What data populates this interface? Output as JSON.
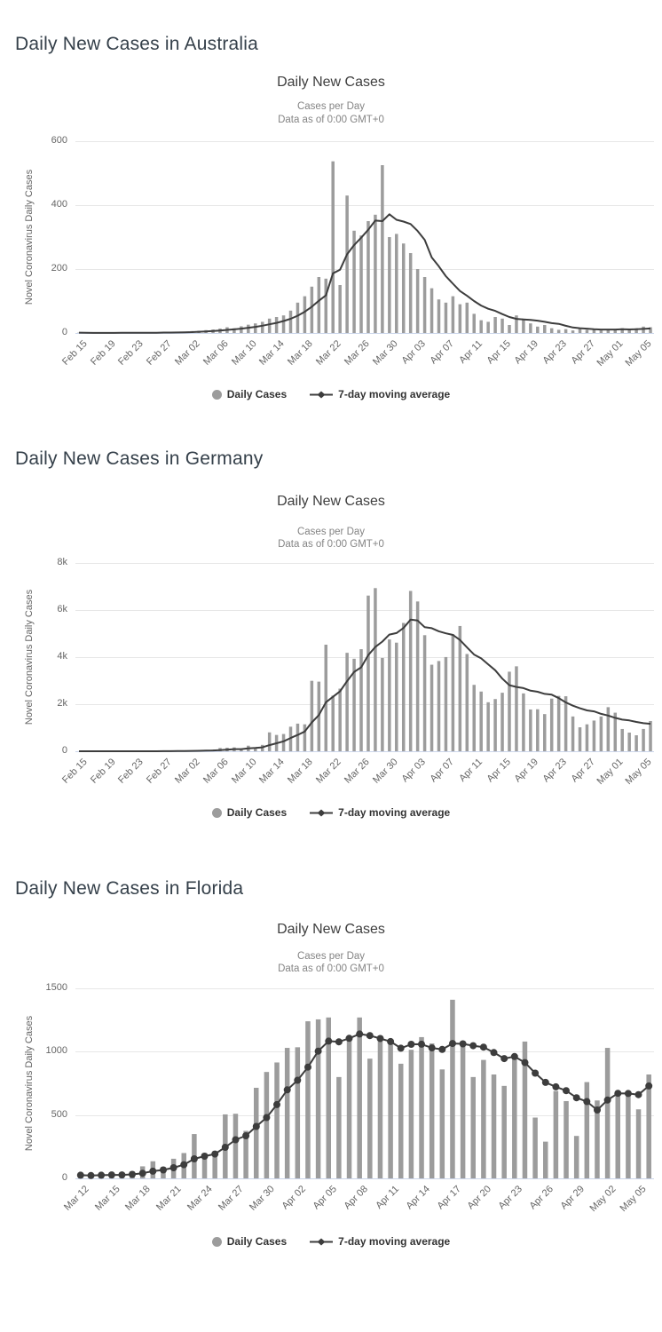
{
  "page": {
    "background": "#ffffff"
  },
  "colors": {
    "bar": "#9c9c9c",
    "ma_line": "#3d3d3d",
    "gridline": "#e7e7e7",
    "axis_line": "#ccd6eb",
    "heading_text": "#35404a",
    "chart_title_text": "#3e3e3e",
    "subtitle_text": "#848484",
    "tick_text": "#666666",
    "legend_text": "#333333"
  },
  "sections": [
    {
      "heading": "Daily New Cases in Australia"
    },
    {
      "heading": "Daily New Cases in Germany"
    },
    {
      "heading": "Daily New Cases in Florida"
    }
  ],
  "chart_common": {
    "title": "Daily New Cases",
    "subtitle1": "Cases per Day",
    "subtitle2": "Data as of 0:00 GMT+0",
    "y_axis_title": "Novel Coronavirus Daily Cases",
    "legend": {
      "daily": "Daily Cases",
      "ma": "7-day moving average"
    }
  },
  "chart_data": [
    {
      "type": "bar",
      "region": "Australia",
      "title": "Daily New Cases",
      "subtitle1": "Cases per Day",
      "subtitle2": "Data as of 0:00 GMT+0",
      "ylabel": "Novel Coronavirus Daily Cases",
      "xlabel": "",
      "grid": true,
      "legend_position": "bottom",
      "series": [
        {
          "name": "Daily Cases",
          "type": "bar"
        },
        {
          "name": "7-day moving average",
          "type": "line",
          "note": "trailing 7-day mean of Daily Cases"
        }
      ],
      "x_tick_labels": [
        "Feb 15",
        "Feb 19",
        "Feb 23",
        "Feb 27",
        "Mar 02",
        "Mar 06",
        "Mar 10",
        "Mar 14",
        "Mar 18",
        "Mar 22",
        "Mar 26",
        "Mar 30",
        "Apr 03",
        "Apr 07",
        "Apr 11",
        "Apr 15",
        "Apr 19",
        "Apr 23",
        "Apr 27",
        "May 01",
        "May 05"
      ],
      "x_tick_step": 4,
      "ylim": [
        0,
        600
      ],
      "y_ticks": [
        {
          "v": 0,
          "label": "0"
        },
        {
          "v": 200,
          "label": "200"
        },
        {
          "v": 400,
          "label": "400"
        },
        {
          "v": 600,
          "label": "600"
        }
      ],
      "line_markers": false,
      "values": [
        1,
        0,
        0,
        0,
        1,
        0,
        2,
        1,
        0,
        2,
        0,
        1,
        3,
        2,
        4,
        4,
        6,
        7,
        9,
        11,
        14,
        18,
        15,
        21,
        26,
        30,
        35,
        45,
        50,
        55,
        70,
        95,
        115,
        145,
        175,
        170,
        537,
        150,
        430,
        320,
        305,
        350,
        370,
        525,
        300,
        310,
        280,
        250,
        200,
        175,
        140,
        105,
        95,
        115,
        90,
        95,
        60,
        40,
        35,
        50,
        45,
        25,
        55,
        45,
        30,
        20,
        25,
        15,
        10,
        12,
        8,
        15,
        10,
        12,
        8,
        10,
        12,
        15,
        10,
        15,
        20,
        18
      ]
    },
    {
      "type": "bar",
      "region": "Germany",
      "title": "Daily New Cases",
      "subtitle1": "Cases per Day",
      "subtitle2": "Data as of 0:00 GMT+0",
      "ylabel": "Novel Coronavirus Daily Cases",
      "xlabel": "",
      "grid": true,
      "legend_position": "bottom",
      "series": [
        {
          "name": "Daily Cases",
          "type": "bar"
        },
        {
          "name": "7-day moving average",
          "type": "line",
          "note": "trailing 7-day mean of Daily Cases"
        }
      ],
      "x_tick_labels": [
        "Feb 15",
        "Feb 19",
        "Feb 23",
        "Feb 27",
        "Mar 02",
        "Mar 06",
        "Mar 10",
        "Mar 14",
        "Mar 18",
        "Mar 22",
        "Mar 26",
        "Mar 30",
        "Apr 03",
        "Apr 07",
        "Apr 11",
        "Apr 15",
        "Apr 19",
        "Apr 23",
        "Apr 27",
        "May 01",
        "May 05"
      ],
      "x_tick_step": 4,
      "ylim": [
        0,
        8000
      ],
      "y_ticks": [
        {
          "v": 0,
          "label": "0"
        },
        {
          "v": 2000,
          "label": "2k"
        },
        {
          "v": 4000,
          "label": "4k"
        },
        {
          "v": 6000,
          "label": "6k"
        },
        {
          "v": 8000,
          "label": "8k"
        }
      ],
      "line_markers": false,
      "values": [
        0,
        0,
        0,
        0,
        0,
        0,
        1,
        0,
        1,
        0,
        2,
        3,
        9,
        13,
        26,
        21,
        37,
        28,
        39,
        66,
        138,
        150,
        163,
        55,
        237,
        157,
        271,
        802,
        693,
        733,
        1043,
        1174,
        1144,
        2993,
        2958,
        4528,
        2365,
        2660,
        4183,
        3930,
        4337,
        6615,
        6933,
        3965,
        4751,
        4615,
        5453,
        6813,
        6365,
        4932,
        3677,
        3834,
        4003,
        4974,
        5323,
        4133,
        2821,
        2537,
        2082,
        2218,
        2486,
        3380,
        3609,
        2458,
        1775,
        1785,
        1579,
        2237,
        2352,
        2337,
        1478,
        1018,
        1144,
        1304,
        1478,
        1872,
        1639,
        945,
        793,
        679,
        947,
        1284
      ]
    },
    {
      "type": "bar",
      "region": "Florida",
      "title": "Daily New Cases",
      "subtitle1": "Cases per Day",
      "subtitle2": "Data as of 0:00 GMT+0",
      "ylabel": "Novel Coronavirus Daily Cases",
      "xlabel": "",
      "grid": true,
      "legend_position": "bottom",
      "series": [
        {
          "name": "Daily Cases",
          "type": "bar"
        },
        {
          "name": "7-day moving average",
          "type": "line",
          "note": "trailing 7-day mean of Daily Cases"
        }
      ],
      "x_tick_labels": [
        "Mar 12",
        "Mar 15",
        "Mar 18",
        "Mar 21",
        "Mar 24",
        "Mar 27",
        "Mar 30",
        "Apr 02",
        "Apr 05",
        "Apr 08",
        "Apr 11",
        "Apr 14",
        "Apr 17",
        "Apr 20",
        "Apr 23",
        "Apr 26",
        "Apr 29",
        "May 02",
        "May 05"
      ],
      "x_tick_step": 3,
      "ylim": [
        0,
        1500
      ],
      "y_ticks": [
        {
          "v": 0,
          "label": "0"
        },
        {
          "v": 500,
          "label": "500"
        },
        {
          "v": 1000,
          "label": "1000"
        },
        {
          "v": 1500,
          "label": "1500"
        }
      ],
      "line_markers": true,
      "values": [
        25,
        20,
        30,
        35,
        25,
        55,
        95,
        135,
        90,
        155,
        200,
        350,
        200,
        215,
        505,
        510,
        375,
        715,
        840,
        915,
        1030,
        1035,
        1240,
        1255,
        1270,
        800,
        1110,
        1270,
        945,
        1080,
        1085,
        905,
        1015,
        1115,
        1065,
        860,
        1410,
        1065,
        800,
        935,
        820,
        730,
        970,
        1080,
        480,
        290,
        690,
        610,
        335,
        760,
        615,
        1030,
        660,
        680,
        545,
        820
      ]
    }
  ]
}
